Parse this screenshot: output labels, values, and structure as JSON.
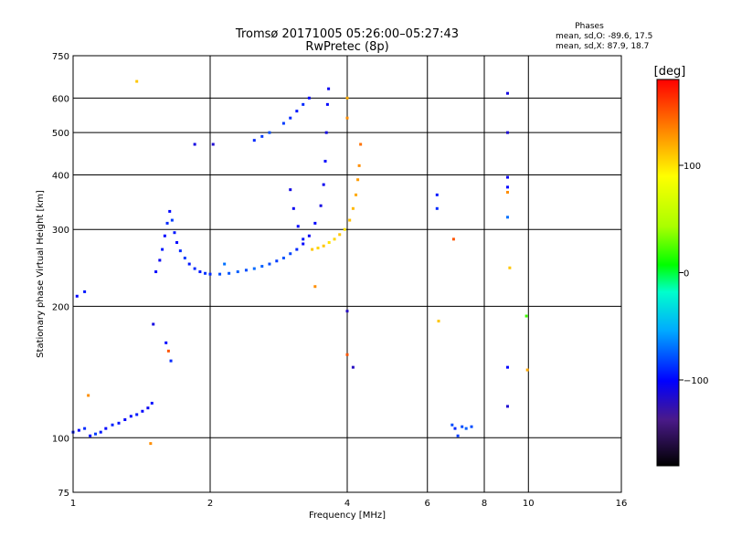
{
  "header": {
    "title_line1": "Tromsø 20171005 05:26:00–05:27:43",
    "title_line2": "RwPretec (8p)"
  },
  "phase_box": {
    "title": "Phases",
    "line_o": "mean, sd,O: -89.6, 17.5",
    "line_x": "mean, sd,X:  87.9, 18.7"
  },
  "colorbar": {
    "label": "[deg]",
    "range": [
      -180,
      180
    ],
    "tick_values": [
      100,
      0,
      -100
    ],
    "tick_labels": [
      "100",
      "0",
      "−100"
    ]
  },
  "chart_data": {
    "type": "scatter",
    "xlabel": "Frequency [MHz]",
    "ylabel": "Stationary phase Virtual Height [km]",
    "x_scale": "log",
    "y_scale": "log",
    "xlim": [
      1,
      16
    ],
    "ylim": [
      75,
      750
    ],
    "x_ticks": [
      1,
      2,
      4,
      6,
      8,
      10,
      16
    ],
    "x_tick_labels": [
      "1",
      "2",
      "4",
      "6",
      "8",
      "10",
      "16"
    ],
    "y_ticks": [
      75,
      100,
      200,
      300,
      400,
      500,
      600,
      750
    ],
    "y_tick_labels": [
      "75",
      "100",
      "200",
      "300",
      "400",
      "500",
      "600",
      "750"
    ],
    "grid": true,
    "color_key": "phase_deg",
    "points": [
      {
        "x": 1.0,
        "y": 103,
        "c": -95
      },
      {
        "x": 1.03,
        "y": 104,
        "c": -100
      },
      {
        "x": 1.06,
        "y": 105,
        "c": -90
      },
      {
        "x": 1.09,
        "y": 101,
        "c": -98
      },
      {
        "x": 1.12,
        "y": 102,
        "c": -85
      },
      {
        "x": 1.15,
        "y": 103,
        "c": -95
      },
      {
        "x": 1.18,
        "y": 105,
        "c": -100
      },
      {
        "x": 1.22,
        "y": 107,
        "c": -92
      },
      {
        "x": 1.26,
        "y": 108,
        "c": -96
      },
      {
        "x": 1.3,
        "y": 110,
        "c": -102
      },
      {
        "x": 1.34,
        "y": 112,
        "c": -98
      },
      {
        "x": 1.38,
        "y": 113,
        "c": -94
      },
      {
        "x": 1.42,
        "y": 115,
        "c": -100
      },
      {
        "x": 1.46,
        "y": 117,
        "c": -105
      },
      {
        "x": 1.49,
        "y": 120,
        "c": -97
      },
      {
        "x": 1.02,
        "y": 211,
        "c": -100
      },
      {
        "x": 1.06,
        "y": 216,
        "c": -95
      },
      {
        "x": 1.08,
        "y": 125,
        "c": 130
      },
      {
        "x": 1.38,
        "y": 655,
        "c": 110
      },
      {
        "x": 1.48,
        "y": 97,
        "c": 130
      },
      {
        "x": 1.52,
        "y": 240,
        "c": -100
      },
      {
        "x": 1.55,
        "y": 255,
        "c": -105
      },
      {
        "x": 1.57,
        "y": 270,
        "c": -95
      },
      {
        "x": 1.59,
        "y": 290,
        "c": -100
      },
      {
        "x": 1.61,
        "y": 310,
        "c": -90
      },
      {
        "x": 1.63,
        "y": 330,
        "c": -100
      },
      {
        "x": 1.65,
        "y": 315,
        "c": -85
      },
      {
        "x": 1.67,
        "y": 295,
        "c": -95
      },
      {
        "x": 1.69,
        "y": 280,
        "c": -100
      },
      {
        "x": 1.72,
        "y": 268,
        "c": -90
      },
      {
        "x": 1.76,
        "y": 258,
        "c": -85
      },
      {
        "x": 1.8,
        "y": 250,
        "c": -95
      },
      {
        "x": 1.85,
        "y": 244,
        "c": -90
      },
      {
        "x": 1.9,
        "y": 240,
        "c": -95
      },
      {
        "x": 1.95,
        "y": 238,
        "c": -88
      },
      {
        "x": 2.0,
        "y": 237,
        "c": -90
      },
      {
        "x": 2.1,
        "y": 237,
        "c": -80
      },
      {
        "x": 2.2,
        "y": 238,
        "c": -78
      },
      {
        "x": 2.3,
        "y": 240,
        "c": -75
      },
      {
        "x": 2.4,
        "y": 242,
        "c": -80
      },
      {
        "x": 2.5,
        "y": 244,
        "c": -72
      },
      {
        "x": 2.6,
        "y": 247,
        "c": -75
      },
      {
        "x": 2.7,
        "y": 250,
        "c": -80
      },
      {
        "x": 2.8,
        "y": 254,
        "c": -85
      },
      {
        "x": 2.9,
        "y": 258,
        "c": -78
      },
      {
        "x": 3.0,
        "y": 264,
        "c": -82
      },
      {
        "x": 3.1,
        "y": 270,
        "c": -90
      },
      {
        "x": 3.2,
        "y": 278,
        "c": -100
      },
      {
        "x": 3.3,
        "y": 290,
        "c": -105
      },
      {
        "x": 3.4,
        "y": 310,
        "c": -100
      },
      {
        "x": 3.5,
        "y": 340,
        "c": -110
      },
      {
        "x": 3.55,
        "y": 380,
        "c": -105
      },
      {
        "x": 3.58,
        "y": 430,
        "c": -100
      },
      {
        "x": 3.6,
        "y": 500,
        "c": -110
      },
      {
        "x": 3.62,
        "y": 580,
        "c": -100
      },
      {
        "x": 3.64,
        "y": 630,
        "c": -105
      },
      {
        "x": 3.35,
        "y": 270,
        "c": 110
      },
      {
        "x": 3.45,
        "y": 272,
        "c": 105
      },
      {
        "x": 3.55,
        "y": 275,
        "c": 110
      },
      {
        "x": 3.65,
        "y": 280,
        "c": 100
      },
      {
        "x": 3.75,
        "y": 285,
        "c": 105
      },
      {
        "x": 3.85,
        "y": 292,
        "c": 110
      },
      {
        "x": 3.95,
        "y": 300,
        "c": 100
      },
      {
        "x": 4.05,
        "y": 315,
        "c": 112
      },
      {
        "x": 4.12,
        "y": 335,
        "c": 115
      },
      {
        "x": 4.18,
        "y": 360,
        "c": 120
      },
      {
        "x": 4.22,
        "y": 390,
        "c": 125
      },
      {
        "x": 4.25,
        "y": 420,
        "c": 130
      },
      {
        "x": 4.28,
        "y": 470,
        "c": 140
      },
      {
        "x": 2.5,
        "y": 480,
        "c": -90
      },
      {
        "x": 2.6,
        "y": 490,
        "c": -85
      },
      {
        "x": 2.7,
        "y": 500,
        "c": -80
      },
      {
        "x": 2.9,
        "y": 525,
        "c": -85
      },
      {
        "x": 3.0,
        "y": 540,
        "c": -90
      },
      {
        "x": 3.1,
        "y": 560,
        "c": -95
      },
      {
        "x": 3.2,
        "y": 580,
        "c": -90
      },
      {
        "x": 3.3,
        "y": 600,
        "c": -100
      },
      {
        "x": 3.0,
        "y": 370,
        "c": -110
      },
      {
        "x": 3.05,
        "y": 335,
        "c": -105
      },
      {
        "x": 3.12,
        "y": 305,
        "c": -100
      },
      {
        "x": 3.2,
        "y": 285,
        "c": -95
      },
      {
        "x": 3.4,
        "y": 222,
        "c": 130
      },
      {
        "x": 1.5,
        "y": 182,
        "c": -110
      },
      {
        "x": 1.6,
        "y": 165,
        "c": -100
      },
      {
        "x": 1.62,
        "y": 158,
        "c": 150
      },
      {
        "x": 1.64,
        "y": 150,
        "c": -90
      },
      {
        "x": 1.85,
        "y": 470,
        "c": -110
      },
      {
        "x": 2.03,
        "y": 470,
        "c": -115
      },
      {
        "x": 2.15,
        "y": 250,
        "c": -70
      },
      {
        "x": 4.0,
        "y": 600,
        "c": 120
      },
      {
        "x": 4.0,
        "y": 540,
        "c": 130
      },
      {
        "x": 4.0,
        "y": 195,
        "c": -120
      },
      {
        "x": 4.0,
        "y": 155,
        "c": 150
      },
      {
        "x": 4.12,
        "y": 145,
        "c": -120
      },
      {
        "x": 6.3,
        "y": 360,
        "c": -95
      },
      {
        "x": 6.3,
        "y": 335,
        "c": -90
      },
      {
        "x": 6.35,
        "y": 185,
        "c": 110
      },
      {
        "x": 6.85,
        "y": 285,
        "c": 150
      },
      {
        "x": 6.8,
        "y": 107,
        "c": -80
      },
      {
        "x": 6.9,
        "y": 105,
        "c": -90
      },
      {
        "x": 7.0,
        "y": 101,
        "c": -85
      },
      {
        "x": 7.15,
        "y": 106,
        "c": -80
      },
      {
        "x": 7.3,
        "y": 105,
        "c": -75
      },
      {
        "x": 7.5,
        "y": 106,
        "c": -80
      },
      {
        "x": 9.0,
        "y": 615,
        "c": -110
      },
      {
        "x": 9.0,
        "y": 500,
        "c": -115
      },
      {
        "x": 9.0,
        "y": 395,
        "c": -105
      },
      {
        "x": 9.0,
        "y": 375,
        "c": -100
      },
      {
        "x": 9.0,
        "y": 365,
        "c": 130
      },
      {
        "x": 9.0,
        "y": 320,
        "c": -70
      },
      {
        "x": 9.1,
        "y": 245,
        "c": 110
      },
      {
        "x": 9.0,
        "y": 145,
        "c": -100
      },
      {
        "x": 9.0,
        "y": 118,
        "c": -115
      },
      {
        "x": 9.9,
        "y": 190,
        "c": 20
      },
      {
        "x": 9.95,
        "y": 143,
        "c": 120
      }
    ]
  }
}
